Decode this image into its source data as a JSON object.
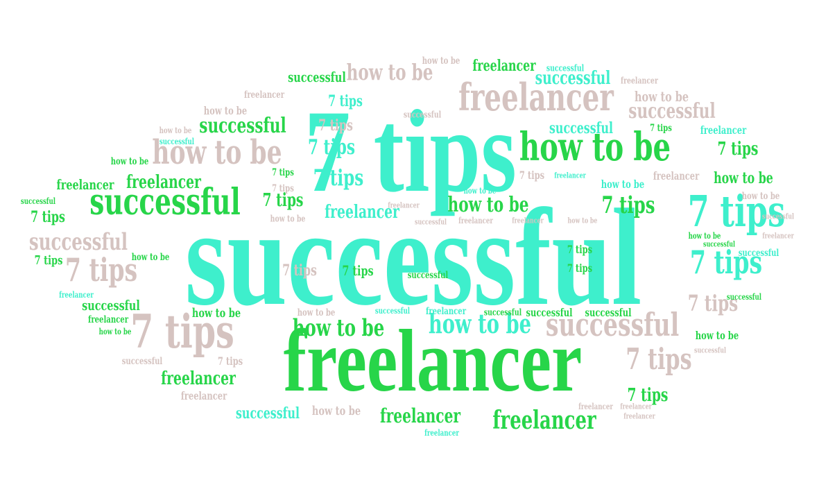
{
  "cloud": {
    "words": [
      "successful",
      "freelancer",
      "how to be",
      "7 tips"
    ]
  },
  "colors": {
    "teal": "#3eefcc",
    "green": "#27d549",
    "beige": "#d5c3c0",
    "background": "#ffffff"
  }
}
